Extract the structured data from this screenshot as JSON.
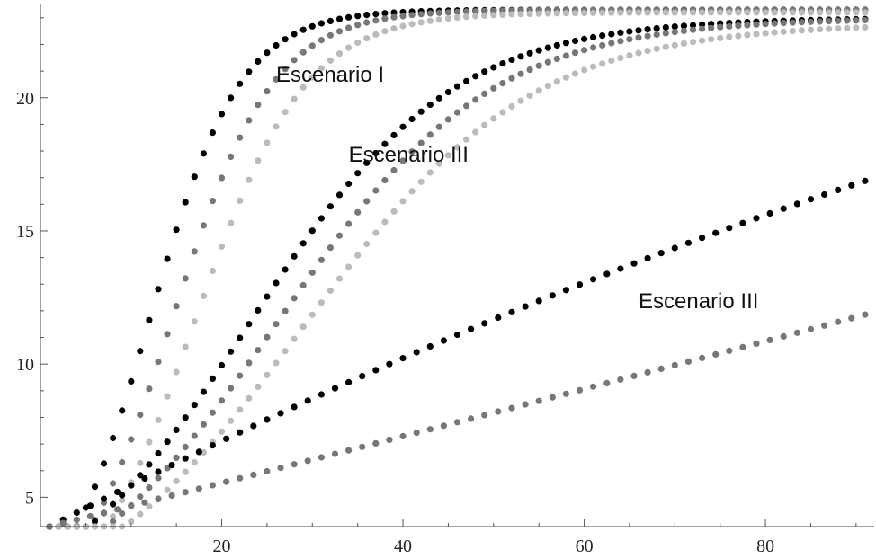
{
  "chart_data": {
    "type": "scatter",
    "xlim": [
      0,
      92
    ],
    "ylim": [
      3.9,
      23.5
    ],
    "x_ticks_major": [
      20,
      40,
      60,
      80
    ],
    "x_ticks_minor": [
      5,
      10,
      15,
      25,
      30,
      35,
      45,
      50,
      55,
      65,
      70,
      75,
      85,
      90
    ],
    "y_ticks_major": [
      5,
      10,
      15,
      20
    ],
    "y_ticks_minor": [
      6,
      7,
      8,
      9,
      11,
      12,
      13,
      14,
      16,
      17,
      18,
      19,
      21,
      22,
      23
    ],
    "grid": false,
    "legend": "none",
    "annotations": [
      {
        "text": "Escenario I",
        "x": 26,
        "y": 20.6
      },
      {
        "text": "Escenario III",
        "x": 34,
        "y": 17.6
      },
      {
        "text": "Escenario III",
        "x": 66,
        "y": 12.1
      }
    ],
    "series": [
      {
        "color": "#000000",
        "model": "logistic",
        "x_start": 1,
        "x_end": 91,
        "step": 1,
        "y0": 3.9,
        "K": 23.3,
        "r": 0.2,
        "x_mid": 12
      },
      {
        "color": "#777777",
        "model": "logistic",
        "x_start": 1,
        "x_end": 91,
        "step": 1,
        "y0": 3.9,
        "K": 23.3,
        "r": 0.18,
        "x_mid": 14.5
      },
      {
        "color": "#bbbbbb",
        "model": "logistic",
        "x_start": 1,
        "x_end": 91,
        "step": 1,
        "y0": 3.9,
        "K": 23.2,
        "r": 0.165,
        "x_mid": 17
      },
      {
        "color": "#000000",
        "model": "logistic",
        "x_start": 1,
        "x_end": 91,
        "step": 1,
        "y0": 3.9,
        "K": 23.0,
        "r": 0.09,
        "x_mid": 23
      },
      {
        "color": "#777777",
        "model": "logistic",
        "x_start": 1,
        "x_end": 91,
        "step": 1,
        "y0": 3.9,
        "K": 23.0,
        "r": 0.085,
        "x_mid": 26
      },
      {
        "color": "#bbbbbb",
        "model": "logistic",
        "x_start": 1,
        "x_end": 91,
        "step": 1,
        "y0": 3.9,
        "K": 22.8,
        "r": 0.08,
        "x_mid": 29
      },
      {
        "color": "#000000",
        "model": "quadratic",
        "x_start": 1,
        "x_end": 91,
        "step": 1.5,
        "a": -0.000352,
        "b": 0.1766,
        "c": 3.722
      },
      {
        "color": "#777777",
        "model": "quadratic",
        "x_start": 1,
        "x_end": 91,
        "step": 1.5,
        "a": 2.95e-05,
        "b": 0.0857,
        "c": 3.8141
      }
    ]
  }
}
